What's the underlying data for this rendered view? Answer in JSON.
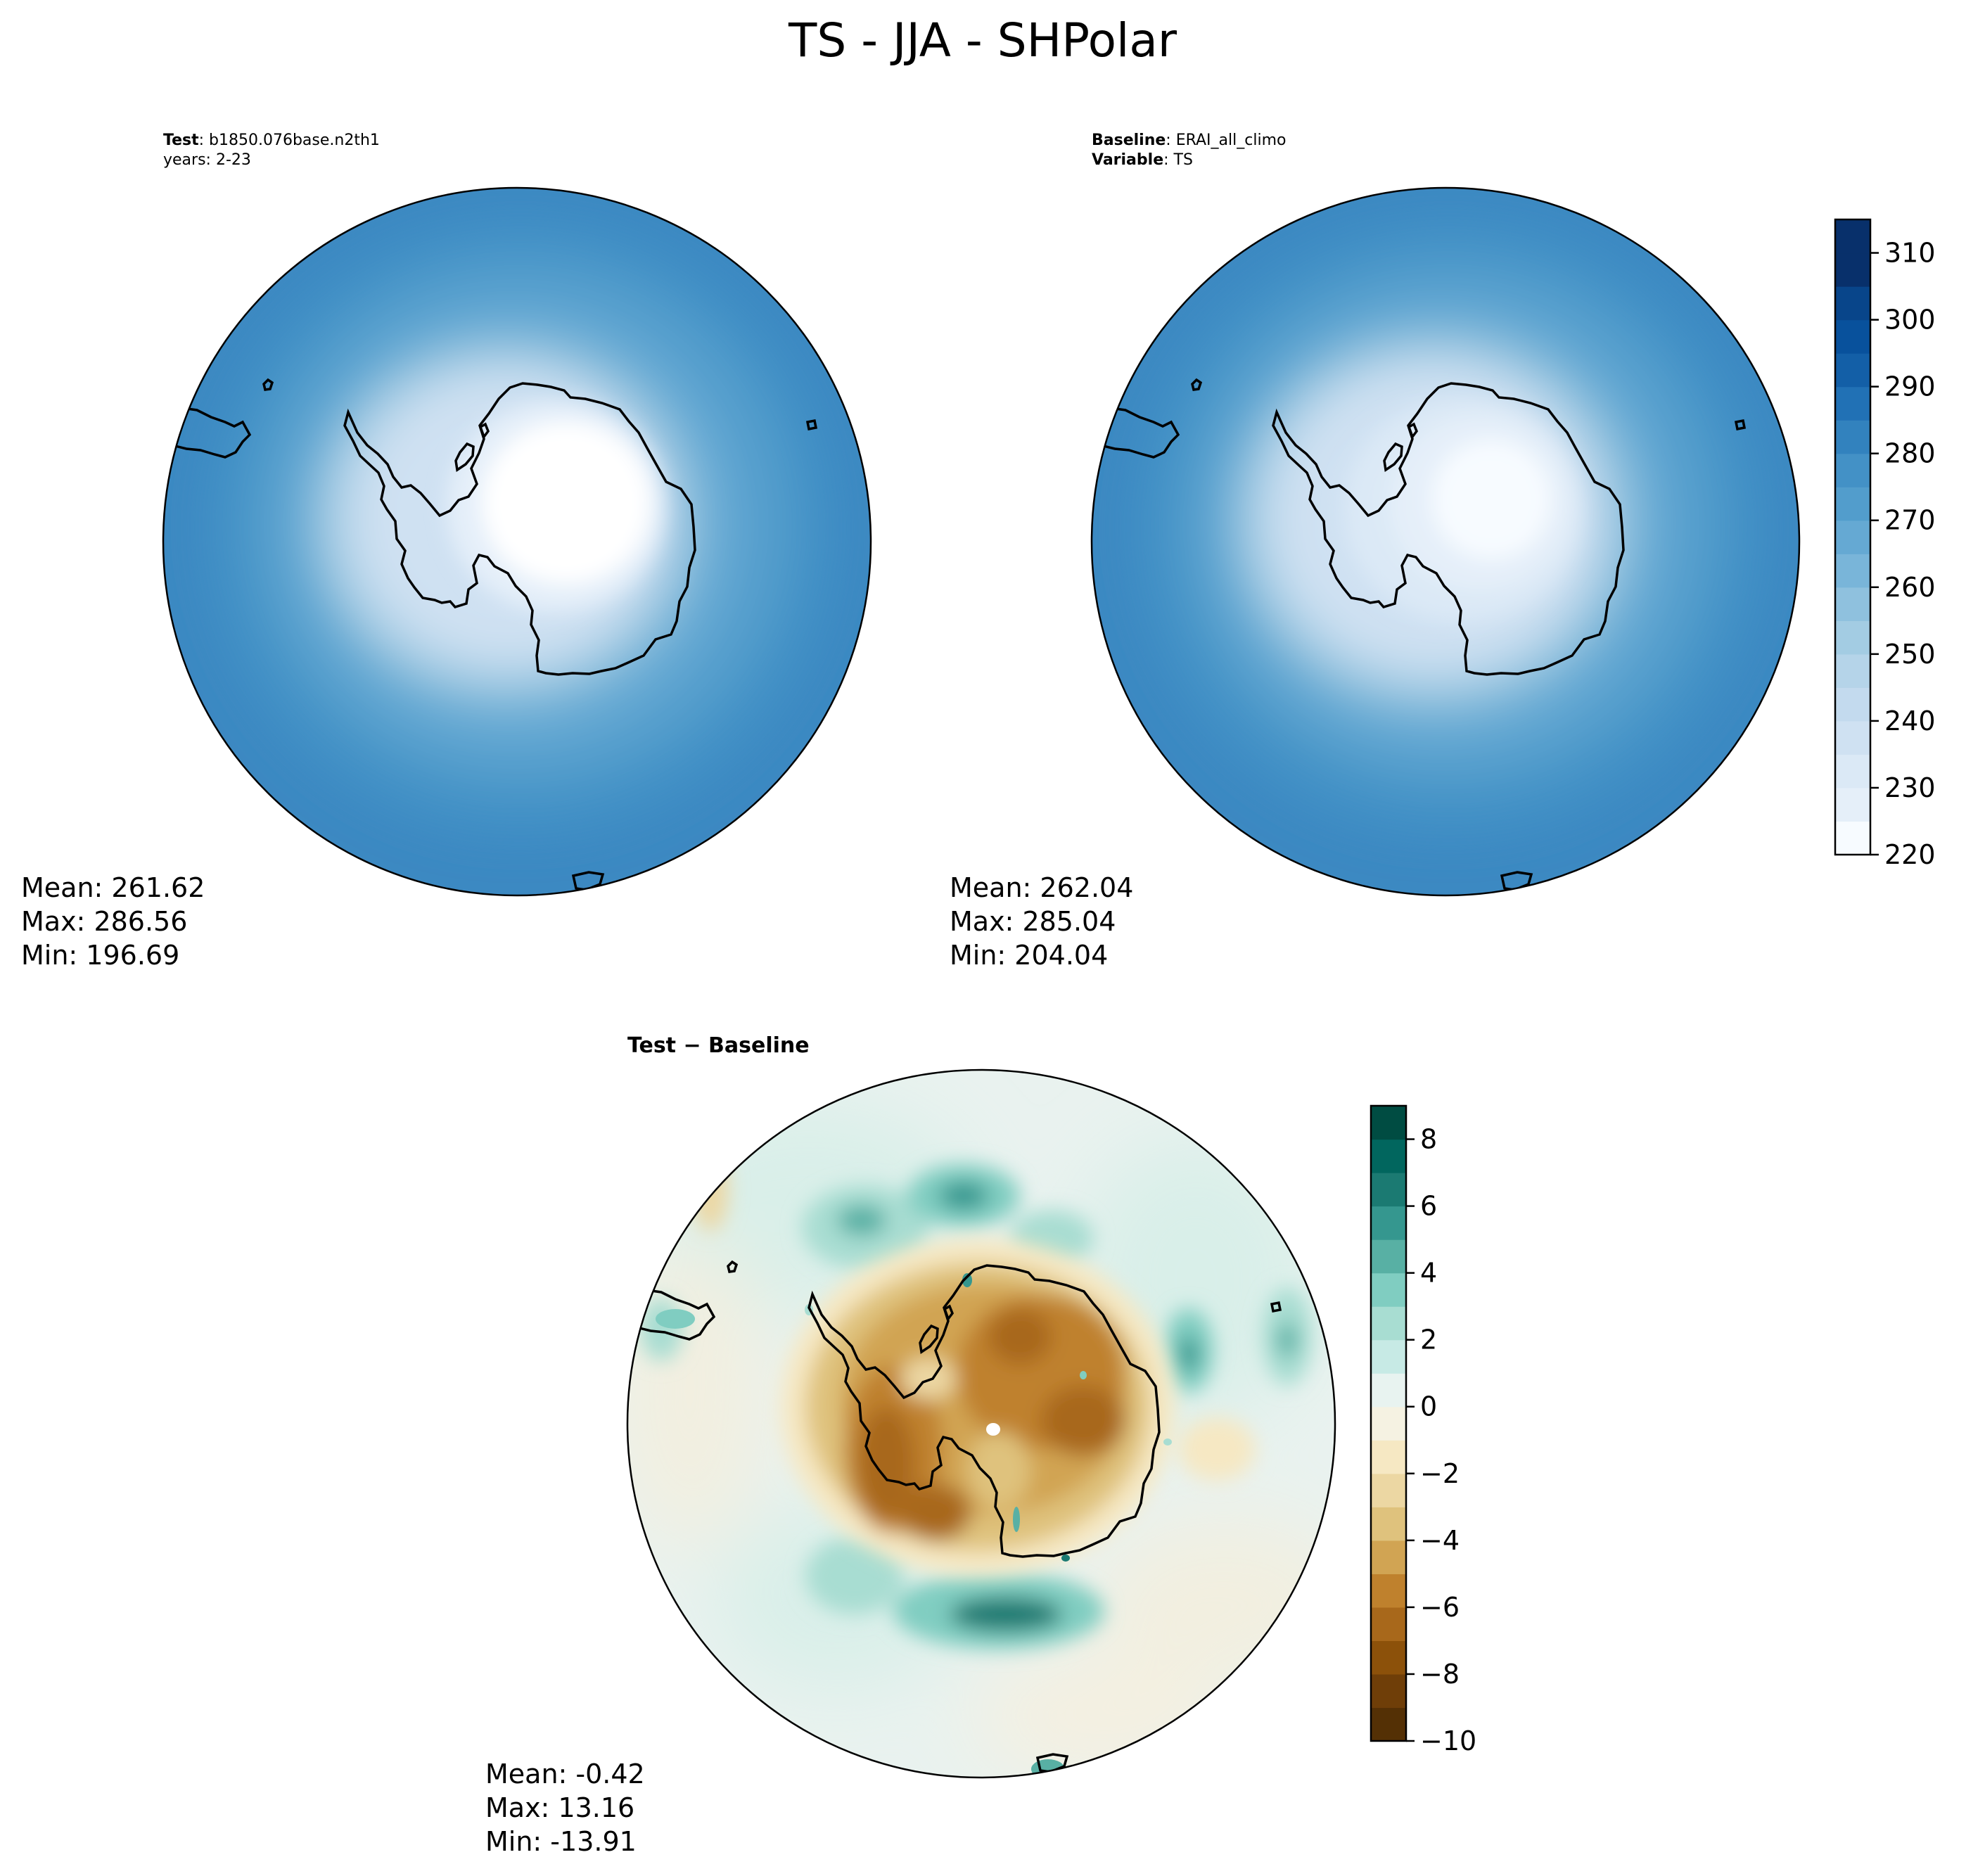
{
  "title": "TS - JJA - SHPolar",
  "colors": {
    "ts_ramp": [
      "#f7fbff",
      "#e5eff9",
      "#dbe9f6",
      "#cfe1f2",
      "#c3daee",
      "#b5d4e9",
      "#a3cce3",
      "#8fc1de",
      "#79b5d9",
      "#65a9d3",
      "#529dcc",
      "#4391c6",
      "#3282be",
      "#2171b5",
      "#135fa7",
      "#08519c",
      "#08458a",
      "#08306b"
    ],
    "diff_ramp": [
      "#543005",
      "#6f3e08",
      "#8c510a",
      "#a8681b",
      "#bf812d",
      "#d1a453",
      "#dfc27d",
      "#ecd7a3",
      "#f6e8c3",
      "#f5f2e2",
      "#e8f3f0",
      "#c7eae5",
      "#a8ddd2",
      "#80cdc1",
      "#58b0a4",
      "#35978f",
      "#1b7a72",
      "#01665e",
      "#004c42"
    ],
    "coast": "#000000"
  },
  "panels": [
    {
      "name": "test",
      "header": [
        {
          "key": "Test",
          "sep": ": ",
          "value": "b1850.076base.n2th1"
        },
        {
          "key": "",
          "sep": "",
          "value": "years: 2-23"
        }
      ],
      "stats": {
        "mean": "Mean: 261.62",
        "max": "Max: 286.56",
        "min": "Min: 196.69"
      }
    },
    {
      "name": "baseline",
      "header": [
        {
          "key": "Baseline",
          "sep": ": ",
          "value": "ERAI_all_climo"
        },
        {
          "key": "Variable",
          "sep": ": ",
          "value": "TS"
        }
      ],
      "stats": {
        "mean": "Mean: 262.04",
        "max": "Max: 285.04",
        "min": "Min: 204.04"
      }
    },
    {
      "name": "difference",
      "header": [
        {
          "key": "Test − Baseline",
          "sep": "",
          "value": ""
        }
      ],
      "stats": {
        "mean": "Mean: -0.42",
        "max": "Max: 13.16",
        "min": "Min: -13.91"
      }
    }
  ],
  "colorbars": {
    "ts": {
      "min": 220,
      "max": 315,
      "step": 5,
      "ticks": [
        "220",
        "230",
        "240",
        "250",
        "260",
        "270",
        "280",
        "290",
        "300",
        "310"
      ]
    },
    "diff": {
      "min": -10,
      "max": 9,
      "step": 1,
      "ticks": [
        "−10",
        "−8",
        "−6",
        "−4",
        "−2",
        "0",
        "2",
        "4",
        "6",
        "8"
      ]
    }
  }
}
